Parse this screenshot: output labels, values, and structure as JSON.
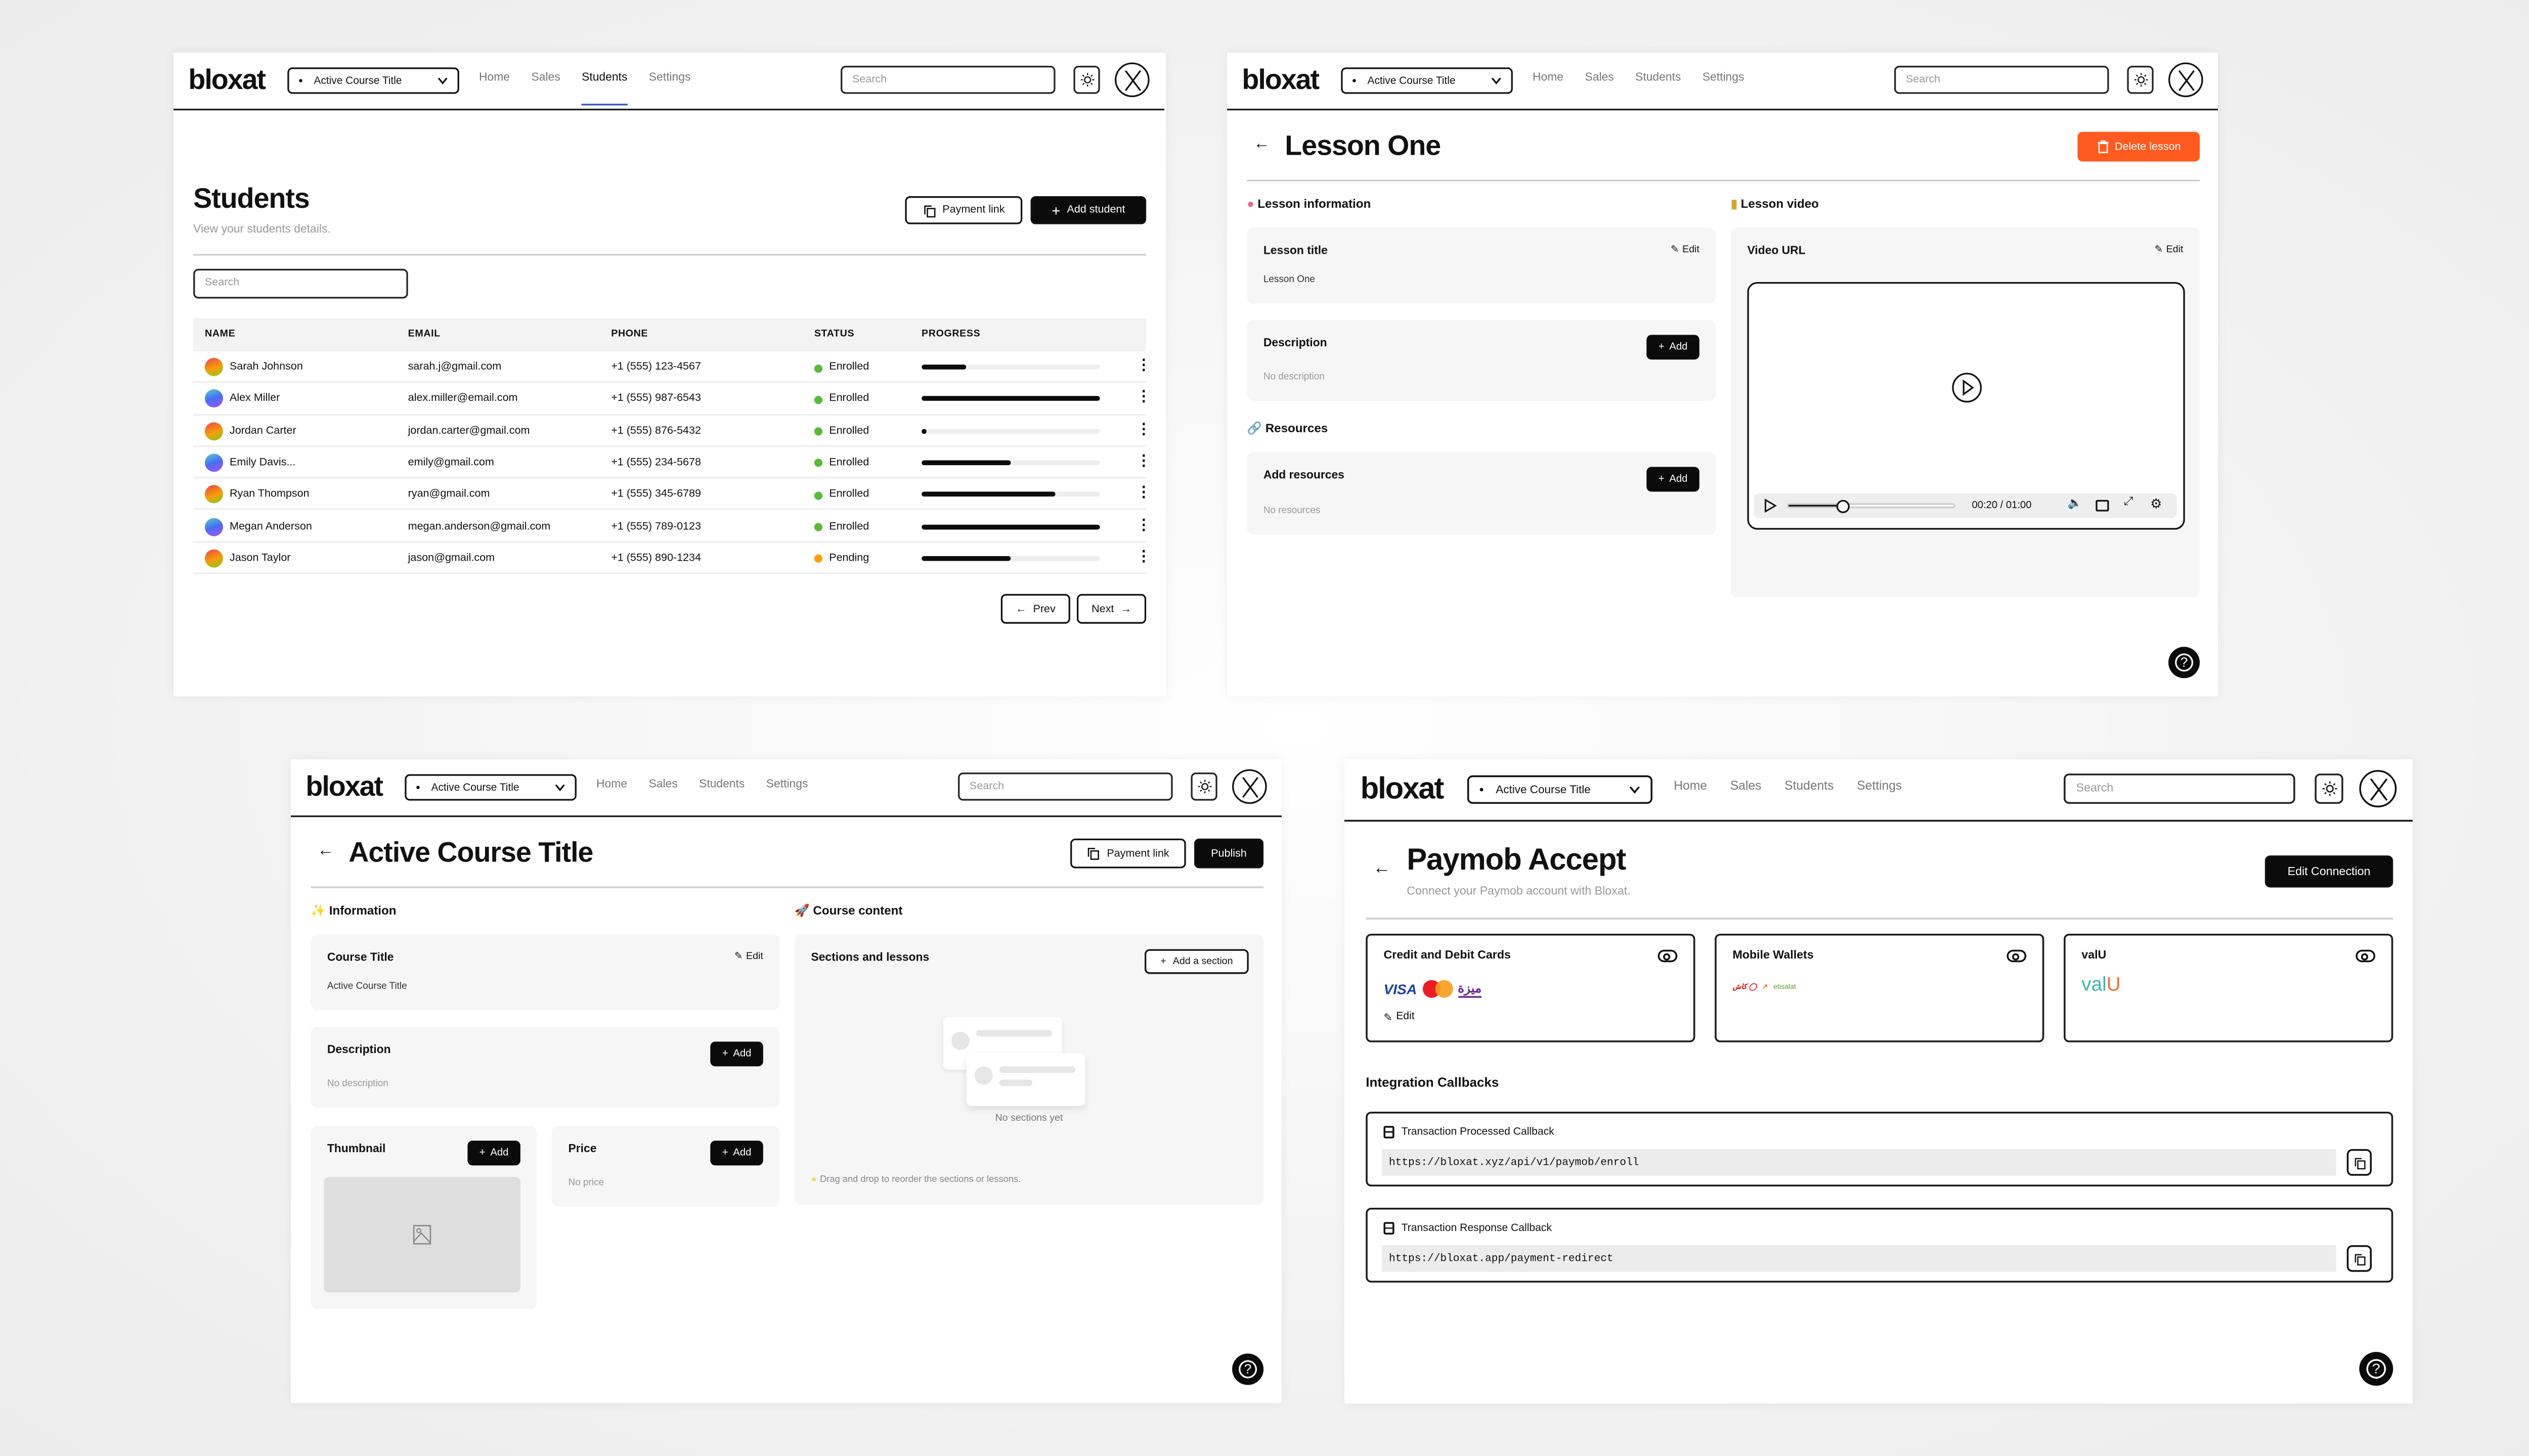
{
  "header": {
    "logo": "bloxat",
    "course_dropdown": "Active Course Title",
    "nav": [
      "Home",
      "Sales",
      "Students",
      "Settings"
    ],
    "search_placeholder": "Search"
  },
  "students_page": {
    "active_nav": "Students",
    "title": "Students",
    "subtitle": "View your students details.",
    "payment_link": "Payment link",
    "add_student": "Add student",
    "search_placeholder": "Search",
    "columns": [
      "NAME",
      "EMAIL",
      "PHONE",
      "STATUS",
      "PROGRESS"
    ],
    "rows": [
      {
        "name": "Sarah Johnson",
        "email": "sarah.j@gmail.com",
        "phone": "+1 (555) 123-4567",
        "status": "Enrolled",
        "progress": 25,
        "avatar": "warm"
      },
      {
        "name": "Alex Miller",
        "email": "alex.miller@email.com",
        "phone": "+1 (555) 987-6543",
        "status": "Enrolled",
        "progress": 100,
        "avatar": "cool"
      },
      {
        "name": "Jordan Carter",
        "email": "jordan.carter@gmail.com",
        "phone": "+1 (555) 876-5432",
        "status": "Enrolled",
        "progress": 3,
        "avatar": "warm"
      },
      {
        "name": "Emily Davis...",
        "email": "emily@gmail.com",
        "phone": "+1 (555) 234-5678",
        "status": "Enrolled",
        "progress": 50,
        "avatar": "cool"
      },
      {
        "name": "Ryan Thompson",
        "email": "ryan@gmail.com",
        "phone": "+1 (555) 345-6789",
        "status": "Enrolled",
        "progress": 75,
        "avatar": "warm"
      },
      {
        "name": "Megan Anderson",
        "email": "megan.anderson@gmail.com",
        "phone": "+1 (555) 789-0123",
        "status": "Enrolled",
        "progress": 100,
        "avatar": "cool"
      },
      {
        "name": "Jason Taylor",
        "email": "jason@gmail.com",
        "phone": "+1 (555) 890-1234",
        "status": "Pending",
        "progress": 50,
        "avatar": "warm"
      }
    ],
    "status_colors": {
      "Enrolled": "#5cb83c",
      "Pending": "#f5a00a"
    },
    "prev": "Prev",
    "next": "Next"
  },
  "lesson_page": {
    "title": "Lesson One",
    "delete": "Delete lesson",
    "delete_color": "#ff5a1f",
    "info_heading": "Lesson information",
    "video_heading": "Lesson video",
    "lesson_title_label": "Lesson title",
    "lesson_title_value": "Lesson One",
    "edit": "Edit",
    "description_label": "Description",
    "description_empty": "No description",
    "add": "Add",
    "resources_heading": "Resources",
    "add_resources_label": "Add resources",
    "resources_empty": "No resources",
    "video_url_label": "Video URL",
    "video_time": "00:20 / 01:00",
    "video_progress": 0.33
  },
  "course_page": {
    "title": "Active Course Title",
    "payment_link": "Payment link",
    "publish": "Publish",
    "info_heading": "Information",
    "content_heading": "Course content",
    "course_title_label": "Course Title",
    "course_title_value": "Active Course Title",
    "edit": "Edit",
    "description_label": "Description",
    "description_empty": "No description",
    "add": "Add",
    "thumbnail_label": "Thumbnail",
    "price_label": "Price",
    "price_empty": "No price",
    "sections_label": "Sections and lessons",
    "add_section": "Add a section",
    "no_sections": "No sections yet",
    "drag_tip": "Drag and drop to reorder the sections or lessons."
  },
  "paymob_page": {
    "title": "Paymob Accept",
    "subtitle": "Connect your Paymob account with Bloxat.",
    "edit_connection": "Edit Connection",
    "methods": [
      {
        "name": "Credit and Debit Cards",
        "logos": [
          "VISA",
          "Mastercard",
          "meeza"
        ],
        "edit": "Edit"
      },
      {
        "name": "Mobile Wallets",
        "logos": [
          "Vodafone Cash",
          "Orange Cash",
          "etisalat cash"
        ]
      },
      {
        "name": "valU",
        "logos": [
          "valU"
        ]
      }
    ],
    "callbacks_heading": "Integration Callbacks",
    "callbacks": [
      {
        "label": "Transaction Processed Callback",
        "url": "https://bloxat.xyz/api/v1/paymob/enroll"
      },
      {
        "label": "Transaction Response Callback",
        "url": "https://bloxat.app/payment-redirect"
      }
    ]
  }
}
